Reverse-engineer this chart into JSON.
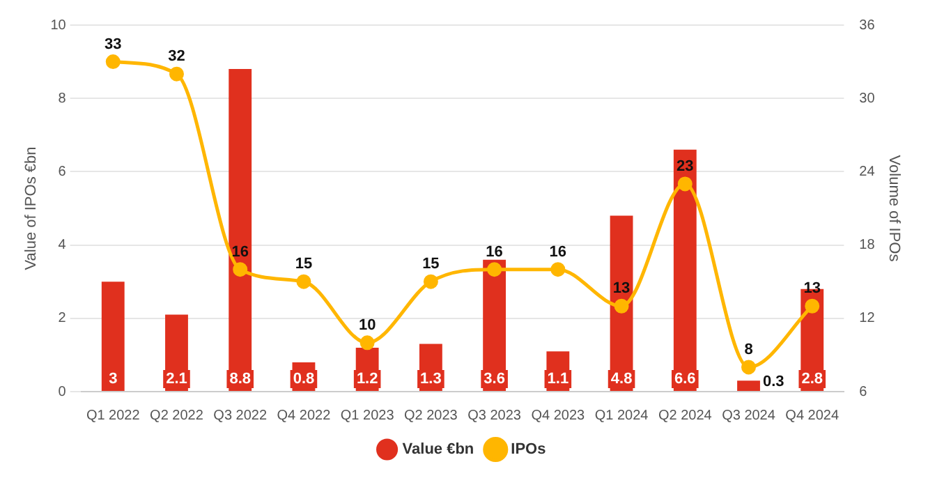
{
  "chart_data": {
    "type": "bar",
    "categories": [
      "Q1 2022",
      "Q2 2022",
      "Q3 2022",
      "Q4 2022",
      "Q1 2023",
      "Q2 2023",
      "Q3 2023",
      "Q4 2023",
      "Q1 2024",
      "Q2 2024",
      "Q3 2024",
      "Q4 2024"
    ],
    "series": [
      {
        "name": "Value €bn",
        "color": "#e0301e",
        "values": [
          3,
          2.1,
          8.8,
          0.8,
          1.2,
          1.3,
          3.6,
          1.1,
          4.8,
          6.6,
          0.3,
          2.8
        ]
      },
      {
        "name": "IPOs",
        "type": "line",
        "axis": "y2",
        "color": "#ffb600",
        "values": [
          33,
          32,
          16,
          15,
          10,
          15,
          16,
          16,
          13,
          23,
          8,
          13
        ]
      }
    ],
    "ylabel": "Value of IPOs €bn",
    "y2label": "Volume of IPOs",
    "ylim": [
      0,
      10
    ],
    "yticks": [
      0,
      2,
      4,
      6,
      8,
      10
    ],
    "y2lim": [
      6,
      36
    ],
    "y2ticks": [
      6,
      12,
      18,
      24,
      30,
      36
    ],
    "grid": "y",
    "legend": "bottom",
    "marker": "circle",
    "line_style": "solid",
    "data_labels": true
  }
}
